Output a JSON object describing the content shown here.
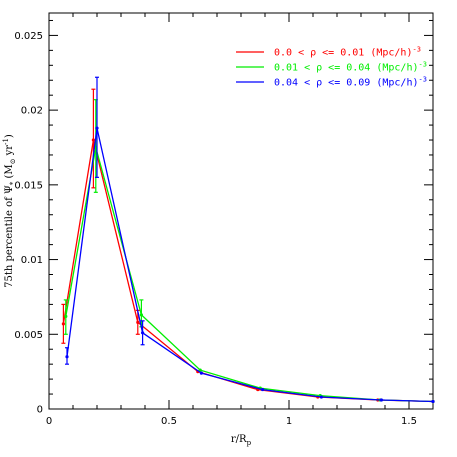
{
  "chart_data": {
    "type": "line",
    "xlabel": "r/R",
    "xlabel_sub": "p",
    "ylabel": "75th percentile of Ψ",
    "ylabel_sub": "*",
    "ylabel_units": " (M",
    "ylabel_units_sub": "⊙",
    "ylabel_units_tail": " yr",
    "ylabel_units_sup": "-1",
    "ylabel_units_close": ")",
    "xlim": [
      0,
      1.6
    ],
    "ylim": [
      0,
      0.0265
    ],
    "x_ticks": [
      0,
      0.5,
      1,
      1.5
    ],
    "x_tick_labels": [
      "0",
      "0.5",
      "1",
      "1.5"
    ],
    "y_ticks": [
      0,
      0.005,
      0.01,
      0.015,
      0.02,
      0.025
    ],
    "y_tick_labels": [
      "0",
      "0.005",
      "0.01",
      "0.015",
      "0.02",
      "0.025"
    ],
    "legend_position": "top-right",
    "series": [
      {
        "name": "0.0 < ρ <= 0.01 (Mpc/h)",
        "name_sup": "-3",
        "color": "#ff0000",
        "points": [
          {
            "x": 0.06,
            "y": 0.0057,
            "err_lo": 0.0044,
            "err_hi": 0.007
          },
          {
            "x": 0.185,
            "y": 0.018,
            "err_lo": 0.0148,
            "err_hi": 0.0214
          },
          {
            "x": 0.37,
            "y": 0.0058,
            "err_lo": 0.005,
            "err_hi": 0.0066
          },
          {
            "x": 0.62,
            "y": 0.0025
          },
          {
            "x": 0.87,
            "y": 0.0013
          },
          {
            "x": 1.12,
            "y": 0.0008
          },
          {
            "x": 1.37,
            "y": 0.0006
          },
          {
            "x": 1.6,
            "y": 0.0005
          }
        ]
      },
      {
        "name": "0.01 < ρ <= 0.04 (Mpc/h)",
        "name_sup": "-3",
        "color": "#00ee00",
        "points": [
          {
            "x": 0.07,
            "y": 0.0062,
            "err_lo": 0.005,
            "err_hi": 0.0073
          },
          {
            "x": 0.195,
            "y": 0.0175,
            "err_lo": 0.0145,
            "err_hi": 0.0207
          },
          {
            "x": 0.385,
            "y": 0.0063,
            "err_lo": 0.0055,
            "err_hi": 0.0073
          },
          {
            "x": 0.63,
            "y": 0.0026
          },
          {
            "x": 0.88,
            "y": 0.0014
          },
          {
            "x": 1.13,
            "y": 0.0009
          },
          {
            "x": 1.38,
            "y": 0.0006
          },
          {
            "x": 1.6,
            "y": 0.0005
          }
        ]
      },
      {
        "name": "0.04 < ρ <= 0.09 (Mpc/h)",
        "name_sup": "-3",
        "color": "#0000ff",
        "points": [
          {
            "x": 0.075,
            "y": 0.0035,
            "err_lo": 0.003,
            "err_hi": 0.0041
          },
          {
            "x": 0.2,
            "y": 0.0188,
            "err_lo": 0.0155,
            "err_hi": 0.0222
          },
          {
            "x": 0.39,
            "y": 0.0051,
            "err_lo": 0.0043,
            "err_hi": 0.0059
          },
          {
            "x": 0.635,
            "y": 0.0024
          },
          {
            "x": 0.89,
            "y": 0.0013
          },
          {
            "x": 1.135,
            "y": 0.0008
          },
          {
            "x": 1.385,
            "y": 0.0006
          },
          {
            "x": 1.6,
            "y": 0.0005
          }
        ]
      }
    ]
  }
}
